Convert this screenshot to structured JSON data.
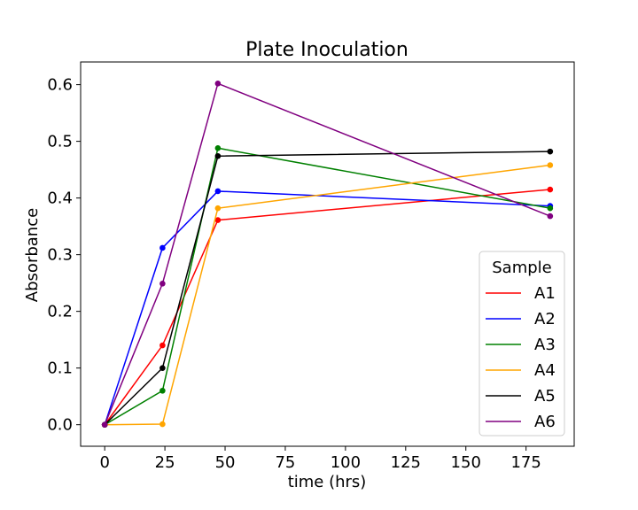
{
  "chart_data": {
    "type": "line",
    "title": "Plate Inoculation",
    "xlabel": "time (hrs)",
    "ylabel": "Absorbance",
    "x": [
      0,
      24,
      47,
      185
    ],
    "xlim": [
      -10,
      195
    ],
    "ylim": [
      -0.038,
      0.64
    ],
    "xticks": [
      0,
      25,
      50,
      75,
      100,
      125,
      150,
      175
    ],
    "yticks": [
      0.0,
      0.1,
      0.2,
      0.3,
      0.4,
      0.5,
      0.6
    ],
    "xtick_labels": [
      "0",
      "25",
      "50",
      "75",
      "100",
      "125",
      "150",
      "175"
    ],
    "ytick_labels": [
      "0.0",
      "0.1",
      "0.2",
      "0.3",
      "0.4",
      "0.5",
      "0.6"
    ],
    "grid": false,
    "legend": {
      "title": "Sample",
      "placement": "lower-right"
    },
    "series": [
      {
        "name": "A1",
        "color": "#ff0000",
        "values": [
          0.0,
          0.14,
          0.361,
          0.415
        ]
      },
      {
        "name": "A2",
        "color": "#0000ff",
        "values": [
          0.0,
          0.312,
          0.412,
          0.386
        ]
      },
      {
        "name": "A3",
        "color": "#008000",
        "values": [
          0.0,
          0.06,
          0.488,
          0.382
        ]
      },
      {
        "name": "A4",
        "color": "#ffa500",
        "values": [
          0.0,
          0.001,
          0.382,
          0.458
        ]
      },
      {
        "name": "A5",
        "color": "#000000",
        "values": [
          0.0,
          0.1,
          0.474,
          0.482
        ]
      },
      {
        "name": "A6",
        "color": "#800080",
        "values": [
          0.0,
          0.249,
          0.602,
          0.368
        ]
      }
    ]
  }
}
